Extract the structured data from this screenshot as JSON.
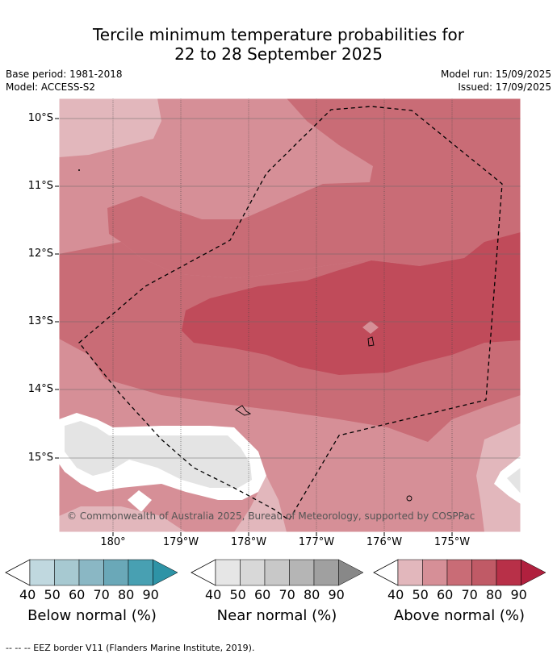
{
  "title_line1": "Tercile minimum temperature probabilities for",
  "title_line2": "22 to 28 September 2025",
  "base_period": "Base period: 1981-2018",
  "model": "Model: ACCESS-S2",
  "model_run": "Model run: 15/09/2025",
  "issued": "Issued: 17/09/2025",
  "copyright": "© Commonwealth of Australia 2025, Bureau of Meteorology, supported by COSPPac",
  "lat_labels": [
    "10°S",
    "11°S",
    "12°S",
    "13°S",
    "14°S",
    "15°S"
  ],
  "lon_labels": [
    "180°",
    "179°W",
    "178°W",
    "177°W",
    "176°W",
    "175°W"
  ],
  "colorbars": [
    {
      "title": "Below normal (%)",
      "ticks": [
        "40",
        "50",
        "60",
        "70",
        "80",
        "90"
      ],
      "colors": [
        "#c0d8df",
        "#a7c9d1",
        "#8ab7c4",
        "#6aa8b8",
        "#48a0b2",
        "#2e93a6"
      ]
    },
    {
      "title": "Near normal (%)",
      "ticks": [
        "40",
        "50",
        "60",
        "70",
        "80",
        "90"
      ],
      "colors": [
        "#e6e6e6",
        "#d8d8d8",
        "#c8c8c8",
        "#b5b5b5",
        "#a0a0a0",
        "#888888"
      ]
    },
    {
      "title": "Above normal (%)",
      "ticks": [
        "40",
        "50",
        "60",
        "70",
        "80",
        "90"
      ],
      "colors": [
        "#e2b7bc",
        "#d68f97",
        "#c96c76",
        "#c05a66",
        "#b83048",
        "#b0203e"
      ]
    }
  ],
  "footer": "-- -- -- EEZ border V11 (Flanders Marine Institute, 2019).",
  "colors": {
    "above_light": "#e2b7bc",
    "above_40": "#d68f97",
    "above_50": "#c96c76",
    "above_60": "#c04b5a",
    "near": "#e4e4e4"
  }
}
